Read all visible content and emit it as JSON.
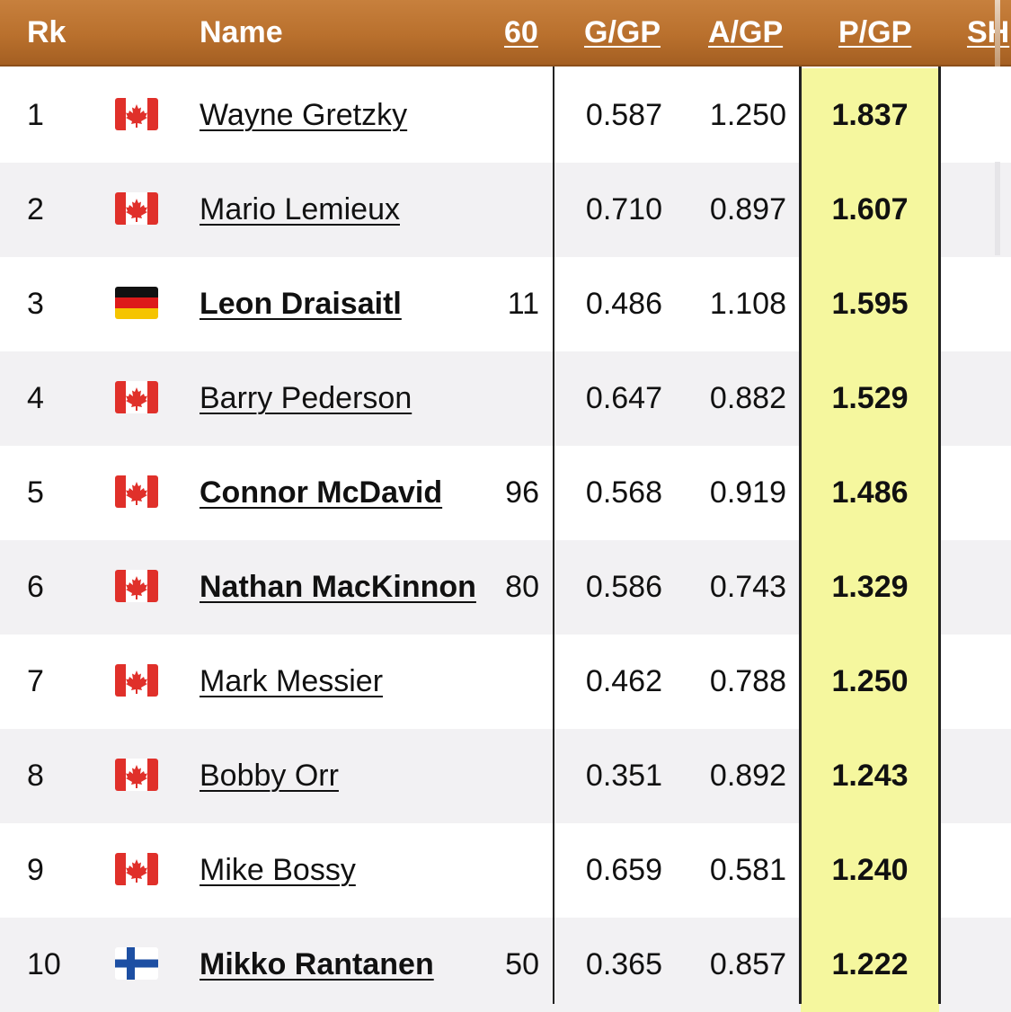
{
  "header": {
    "rk": "Rk",
    "name": "Name",
    "col60": "60",
    "ggp": "G/GP",
    "agp": "A/GP",
    "pgp": "P/GP",
    "sh": "SH"
  },
  "rows": [
    {
      "rank": "1",
      "flag": "canada-flag-icon",
      "name": "Wayne Gretzky",
      "active": false,
      "col60": "",
      "ggp": "0.587",
      "agp": "1.250",
      "pgp": "1.837"
    },
    {
      "rank": "2",
      "flag": "canada-flag-icon",
      "name": "Mario Lemieux",
      "active": false,
      "col60": "",
      "ggp": "0.710",
      "agp": "0.897",
      "pgp": "1.607"
    },
    {
      "rank": "3",
      "flag": "germany-flag-icon",
      "name": "Leon Draisaitl",
      "active": true,
      "col60": "11",
      "ggp": "0.486",
      "agp": "1.108",
      "pgp": "1.595"
    },
    {
      "rank": "4",
      "flag": "canada-flag-icon",
      "name": "Barry Pederson",
      "active": false,
      "col60": "",
      "ggp": "0.647",
      "agp": "0.882",
      "pgp": "1.529"
    },
    {
      "rank": "5",
      "flag": "canada-flag-icon",
      "name": "Connor McDavid",
      "active": true,
      "col60": "96",
      "ggp": "0.568",
      "agp": "0.919",
      "pgp": "1.486"
    },
    {
      "rank": "6",
      "flag": "canada-flag-icon",
      "name": "Nathan MacKinnon",
      "active": true,
      "col60": "80",
      "ggp": "0.586",
      "agp": "0.743",
      "pgp": "1.329"
    },
    {
      "rank": "7",
      "flag": "canada-flag-icon",
      "name": "Mark Messier",
      "active": false,
      "col60": "",
      "ggp": "0.462",
      "agp": "0.788",
      "pgp": "1.250"
    },
    {
      "rank": "8",
      "flag": "canada-flag-icon",
      "name": "Bobby Orr",
      "active": false,
      "col60": "",
      "ggp": "0.351",
      "agp": "0.892",
      "pgp": "1.243"
    },
    {
      "rank": "9",
      "flag": "canada-flag-icon",
      "name": "Mike Bossy",
      "active": false,
      "col60": "",
      "ggp": "0.659",
      "agp": "0.581",
      "pgp": "1.240"
    },
    {
      "rank": "10",
      "flag": "finland-flag-icon",
      "name": "Mikko Rantanen",
      "active": true,
      "col60": "50",
      "ggp": "0.365",
      "agp": "0.857",
      "pgp": "1.222"
    }
  ],
  "colors": {
    "header": "#b9702d",
    "highlight": "#f5f79e",
    "alt_row": "#f2f1f3"
  }
}
